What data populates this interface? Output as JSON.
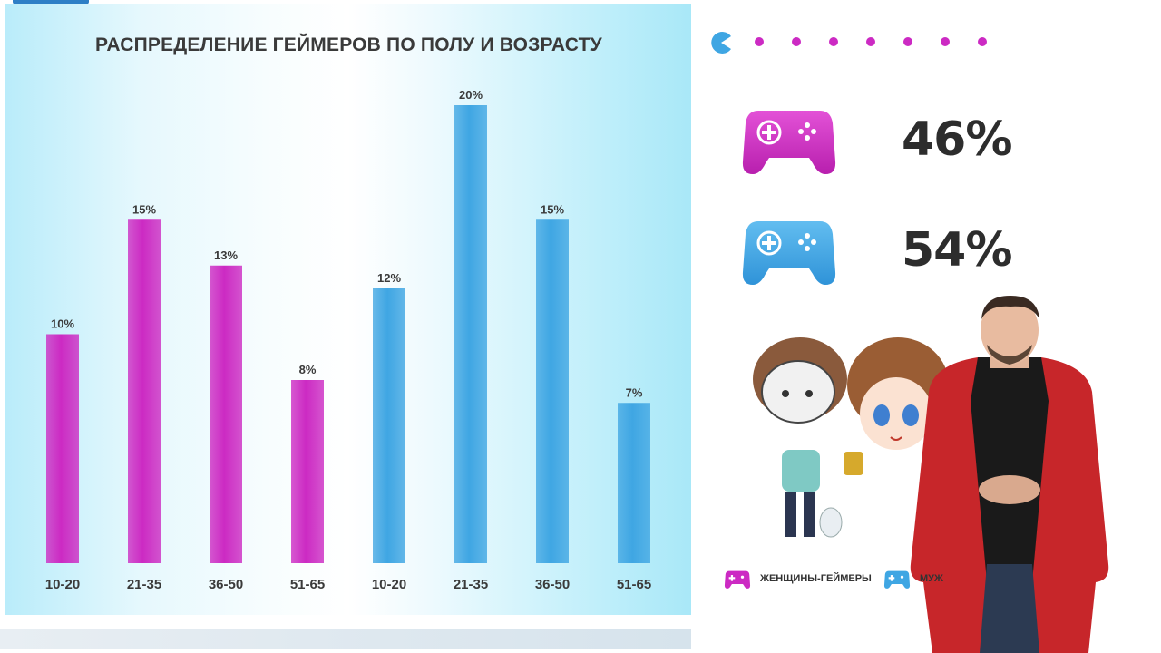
{
  "chart_data": {
    "type": "bar",
    "title": "РАСПРЕДЕЛЕНИЕ ГЕЙМЕРОВ ПО ПОЛУ И ВОЗРАСТУ",
    "categories": [
      "10-20",
      "21-35",
      "36-50",
      "51-65",
      "10-20",
      "21-35",
      "36-50",
      "51-65"
    ],
    "series": [
      {
        "name": "ЖЕНЩИНЫ-ГЕЙМЕРЫ",
        "color": "#cc2ac3",
        "values": [
          10,
          15,
          13,
          8,
          null,
          null,
          null,
          null
        ]
      },
      {
        "name": "МУЖ",
        "color": "#3fa6e3",
        "values": [
          null,
          null,
          null,
          null,
          12,
          20,
          15,
          7
        ]
      }
    ],
    "data_labels": [
      "10%",
      "15%",
      "13%",
      "8%",
      "12%",
      "20%",
      "15%",
      "7%"
    ],
    "ylim": [
      0,
      20
    ],
    "grid": false,
    "legend_position": "bottom-right"
  },
  "dots": {
    "count": 7,
    "color": "#cc2ac3",
    "pac_color": "#3fa6e3"
  },
  "shares": [
    {
      "label_icon": "gamepad-pink-icon",
      "value": "46%",
      "color": "#cc2ac3"
    },
    {
      "label_icon": "gamepad-blue-icon",
      "value": "54%",
      "color": "#3fa6e3"
    }
  ],
  "legend": {
    "female_label": "ЖЕНЩИНЫ-ГЕЙМЕРЫ",
    "male_label": "МУЖ"
  }
}
